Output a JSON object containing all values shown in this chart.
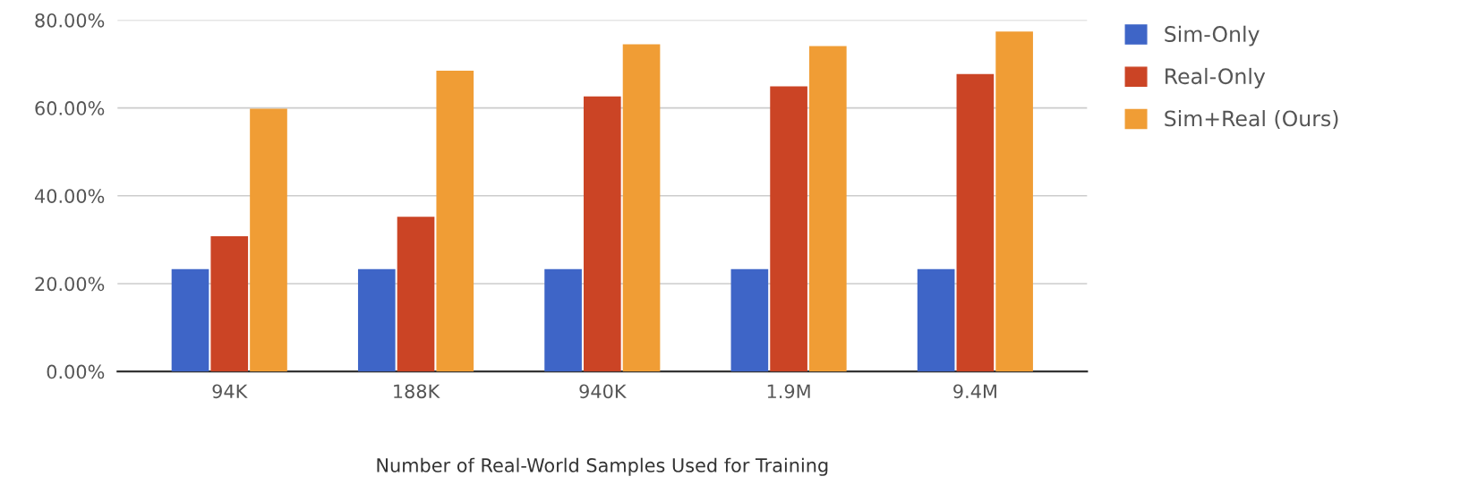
{
  "chart_data": {
    "type": "bar",
    "xlabel": "Number of Real-World Samples Used for Training",
    "categories": [
      "94K",
      "188K",
      "940K",
      "1.9M",
      "9.4M"
    ],
    "series": [
      {
        "name": "Sim-Only",
        "color": "#3e65c7",
        "values": [
          23.3,
          23.3,
          23.3,
          23.3,
          23.3
        ]
      },
      {
        "name": "Real-Only",
        "color": "#cb4425",
        "values": [
          30.8,
          35.2,
          62.6,
          64.9,
          67.7
        ]
      },
      {
        "name": "Sim+Real (Ours)",
        "color": "#f09d35",
        "values": [
          59.8,
          68.5,
          74.5,
          74.1,
          77.4
        ]
      }
    ],
    "ylim": [
      0,
      80
    ],
    "yticks": [
      {
        "value": 0,
        "label": "0.00%"
      },
      {
        "value": 20,
        "label": "20.00%"
      },
      {
        "value": 40,
        "label": "40.00%"
      },
      {
        "value": 60,
        "label": "60.00%"
      },
      {
        "value": 80,
        "label": "80.00%"
      }
    ],
    "grid": "y",
    "legend": "top right"
  }
}
